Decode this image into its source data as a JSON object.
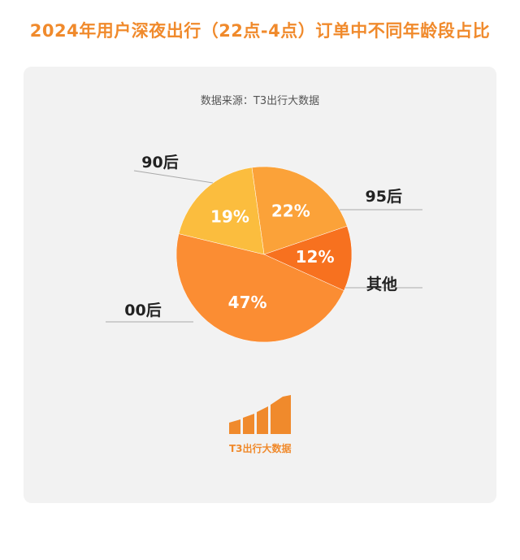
{
  "title": "2024年用户深夜出行（22点-4点）订单中不同年龄段占比",
  "source": "数据来源：T3出行大数据",
  "logo": {
    "text": "T3出行大数据"
  },
  "chart_data": {
    "type": "pie",
    "title": "2024年用户深夜出行（22点-4点）订单中不同年龄段占比",
    "slices": [
      {
        "label": "95后",
        "value": 22,
        "display": "22%",
        "color": "#fba239"
      },
      {
        "label": "其他",
        "value": 12,
        "display": "12%",
        "color": "#f7711f"
      },
      {
        "label": "00后",
        "value": 47,
        "display": "47%",
        "color": "#fb8d33"
      },
      {
        "label": "90后",
        "value": 19,
        "display": "19%",
        "color": "#fbbd3e"
      }
    ]
  }
}
